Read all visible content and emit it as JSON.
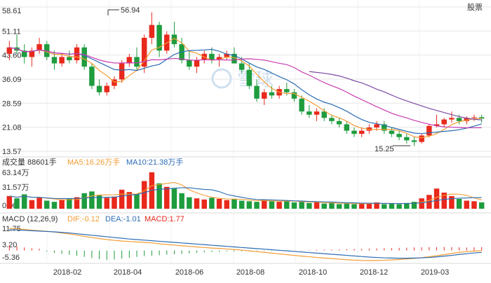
{
  "app": {
    "watermark_text": "雪球"
  },
  "top_right_partial": "股票",
  "price_panel": {
    "y_ticks": [
      "58.61",
      "51.11",
      "43.60",
      "36.09",
      "28.59",
      "21.08",
      "13.57"
    ],
    "y_values": [
      58.61,
      51.11,
      43.6,
      36.09,
      28.59,
      21.08,
      13.57
    ],
    "max_label": "56.94",
    "min_label": "15.25"
  },
  "volume_panel": {
    "header": "成交量 88601手",
    "ma5": "MA5:16.26万手",
    "ma10": "MA10:21.38万手",
    "y_ticks": [
      "63.14万",
      "31.57万",
      "0.00"
    ]
  },
  "macd_panel": {
    "header": "MACD (12,26,9)",
    "dif": "DIF:-0.12",
    "dea": "DEA:-1.01",
    "macd": "MACD:1.77",
    "y_ticks": [
      "11.75",
      "3.20",
      "-5.36"
    ]
  },
  "x_axis": {
    "labels": [
      "2018-02",
      "2018-04",
      "2018-06",
      "2018-08",
      "2018-10",
      "2018-12",
      "2019-03"
    ]
  },
  "colors": {
    "up": "#e8291c",
    "down": "#1e9c3e",
    "ma_blue": "#2b6cb3",
    "ma_orange": "#f39c33",
    "ma_pink": "#c83cb0",
    "ma_purple": "#7d4aa8",
    "grid": "#e6e6e6"
  },
  "chart_data": {
    "type": "candlestick",
    "x_labels": [
      "2018-02",
      "2018-04",
      "2018-06",
      "2018-08",
      "2018-10",
      "2018-12",
      "2019-03"
    ],
    "price_range": [
      13.57,
      58.61
    ],
    "annotated_high": 56.94,
    "annotated_low": 15.25,
    "candles": [
      [
        44,
        48,
        42,
        46
      ],
      [
        46,
        50,
        44,
        45
      ],
      [
        45,
        47,
        41,
        43
      ],
      [
        43,
        46,
        40,
        45
      ],
      [
        45,
        49,
        44,
        47
      ],
      [
        47,
        48,
        42,
        43
      ],
      [
        43,
        45,
        39,
        41
      ],
      [
        41,
        44,
        40,
        43
      ],
      [
        43,
        45,
        41,
        42
      ],
      [
        42,
        47,
        41,
        46
      ],
      [
        46,
        47,
        39,
        40
      ],
      [
        40,
        41,
        33,
        34
      ],
      [
        34,
        36,
        31,
        32
      ],
      [
        32,
        35,
        31,
        34
      ],
      [
        34,
        37,
        33,
        36
      ],
      [
        36,
        42,
        35,
        41
      ],
      [
        41,
        44,
        40,
        43
      ],
      [
        43,
        46,
        39,
        40
      ],
      [
        40,
        50,
        38,
        49
      ],
      [
        49,
        56.94,
        47,
        53
      ],
      [
        53,
        54,
        43,
        45
      ],
      [
        45,
        51,
        44,
        50
      ],
      [
        50,
        54,
        46,
        47
      ],
      [
        47,
        49,
        41,
        42
      ],
      [
        42,
        45,
        39,
        40
      ],
      [
        40,
        43,
        38,
        42
      ],
      [
        42,
        45,
        41,
        44
      ],
      [
        44,
        46,
        41,
        42
      ],
      [
        42,
        44,
        40,
        43
      ],
      [
        43,
        45,
        42,
        44
      ],
      [
        44,
        46,
        41,
        41
      ],
      [
        41,
        43,
        38,
        39
      ],
      [
        39,
        41,
        33,
        34
      ],
      [
        34,
        36,
        29,
        30
      ],
      [
        30,
        33,
        28,
        32
      ],
      [
        32,
        34,
        30,
        31
      ],
      [
        31,
        34,
        30,
        33
      ],
      [
        33,
        35,
        31,
        32
      ],
      [
        32,
        33,
        29,
        30
      ],
      [
        30,
        31,
        25,
        26
      ],
      [
        26,
        28,
        24,
        25
      ],
      [
        25,
        27,
        23,
        26
      ],
      [
        26,
        27,
        23,
        24
      ],
      [
        24,
        25,
        22,
        23
      ],
      [
        23,
        24,
        21,
        22
      ],
      [
        22,
        23,
        19,
        20
      ],
      [
        20,
        21,
        18,
        19
      ],
      [
        19,
        21,
        18,
        20
      ],
      [
        20,
        22,
        19,
        21
      ],
      [
        21,
        23,
        20,
        22
      ],
      [
        22,
        23,
        19,
        20
      ],
      [
        20,
        21,
        18,
        19
      ],
      [
        19,
        20,
        17,
        18
      ],
      [
        18,
        19,
        16,
        17
      ],
      [
        17,
        18,
        15.25,
        16.5
      ],
      [
        16.5,
        19,
        16,
        18.5
      ],
      [
        18.5,
        22,
        18,
        21.5
      ],
      [
        21.5,
        25,
        21,
        22
      ],
      [
        22,
        24,
        21,
        23.5
      ],
      [
        23.5,
        26,
        22.5,
        24
      ],
      [
        24,
        25,
        22,
        23
      ],
      [
        23,
        24.5,
        22,
        24
      ],
      [
        24,
        25,
        23,
        24.2
      ],
      [
        24.2,
        25,
        22.5,
        23.8
      ]
    ],
    "volume": [
      22,
      18,
      25,
      15,
      19,
      14,
      12,
      16,
      18,
      20,
      27,
      30,
      24,
      19,
      21,
      33,
      29,
      26,
      48,
      63.14,
      44,
      38,
      35,
      27,
      20,
      18,
      16,
      19,
      17,
      15,
      17,
      14,
      13,
      12,
      16,
      13,
      12,
      14,
      11,
      12,
      10,
      11,
      9,
      10,
      8,
      9,
      8,
      10,
      9,
      11,
      8,
      9,
      8,
      10,
      12,
      18,
      24,
      35,
      28,
      22,
      17,
      14,
      13,
      11
    ],
    "macd_hist": [
      2.8,
      2.1,
      1.6,
      1.2,
      0.9,
      -0.6,
      -1.2,
      -1.8,
      -2.3,
      -2.8,
      -3.4,
      -4.0,
      -4.6,
      -5.0,
      -4.8,
      -4.3,
      -3.9,
      -3.4,
      -3.0,
      -2.8,
      -2.5,
      -2.2,
      -2.0,
      -1.8,
      -1.5,
      -1.2,
      -1.0,
      -0.8,
      -0.7,
      -0.6,
      -0.5,
      -0.4,
      -0.4,
      -0.3,
      -0.3,
      -0.2,
      -0.2,
      -0.1,
      0.1,
      0.2,
      0.3,
      0.4,
      0.5,
      0.6,
      0.6,
      0.7,
      0.8,
      0.9,
      1.0,
      1.1,
      1.2,
      1.3,
      1.4,
      1.5,
      1.6,
      1.7,
      1.8,
      1.77,
      1.9,
      1.8,
      1.7,
      1.6,
      1.7,
      1.77
    ],
    "dif": [
      11.75,
      11.5,
      11.2,
      10.8,
      10.5,
      10.2,
      9.8,
      9.3,
      8.8,
      8.2,
      7.5,
      6.9,
      6.3,
      5.8,
      5.4,
      5.0,
      4.8,
      4.5,
      4.3,
      4.0,
      3.6,
      3.2,
      2.9,
      2.5,
      2.2,
      1.9,
      1.6,
      1.3,
      1.1,
      0.8,
      0.5,
      0.2,
      -0.2,
      -0.6,
      -1.0,
      -1.4,
      -1.8,
      -2.2,
      -2.6,
      -3.0,
      -3.3,
      -3.7,
      -4.0,
      -4.3,
      -4.6,
      -4.9,
      -5.1,
      -5.3,
      -5.36,
      -5.3,
      -5.2,
      -5.0,
      -4.8,
      -4.5,
      -4.2,
      -3.8,
      -3.3,
      -2.8,
      -2.2,
      -1.6,
      -1.0,
      -0.6,
      -0.3,
      -0.12
    ],
    "dea": [
      11.0,
      10.9,
      10.7,
      10.5,
      10.3,
      10.1,
      9.9,
      9.6,
      9.3,
      8.9,
      8.5,
      8.1,
      7.7,
      7.3,
      6.9,
      6.5,
      6.1,
      5.8,
      5.5,
      5.2,
      4.9,
      4.6,
      4.3,
      4.0,
      3.7,
      3.4,
      3.1,
      2.8,
      2.5,
      2.2,
      1.9,
      1.6,
      1.3,
      1.0,
      0.7,
      0.4,
      0.1,
      -0.2,
      -0.5,
      -0.8,
      -1.1,
      -1.4,
      -1.7,
      -2.0,
      -2.3,
      -2.6,
      -2.9,
      -3.2,
      -3.5,
      -3.7,
      -3.9,
      -4.0,
      -4.1,
      -4.1,
      -4.0,
      -3.9,
      -3.7,
      -3.4,
      -3.0,
      -2.6,
      -2.1,
      -1.7,
      -1.3,
      -1.01
    ]
  }
}
